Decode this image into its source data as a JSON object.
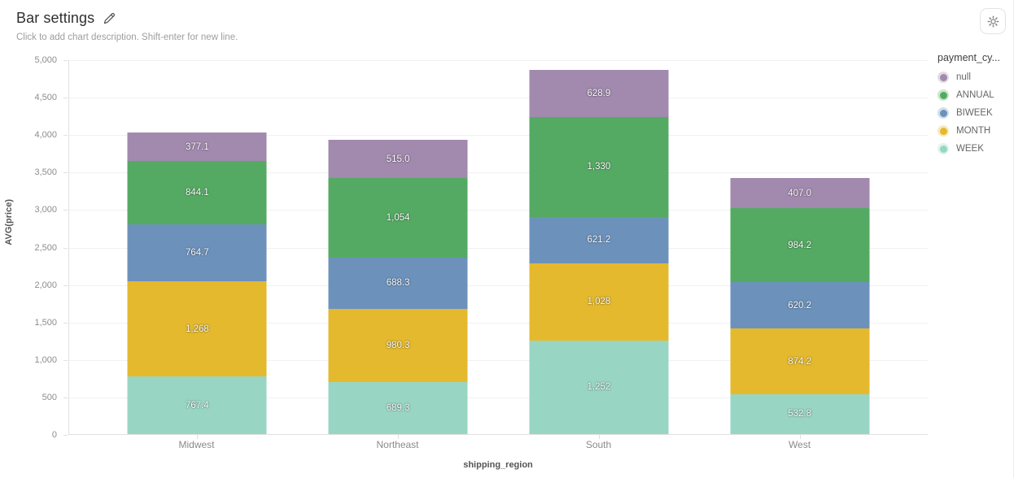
{
  "header": {
    "title": "Bar settings",
    "description_placeholder": "Click to add chart description. Shift-enter for new line."
  },
  "toolbar": {
    "settings_icon": "gear-icon",
    "edit_icon": "pencil-icon"
  },
  "chart_data": {
    "type": "bar",
    "stacked": true,
    "categories": [
      "Midwest",
      "Northeast",
      "South",
      "West"
    ],
    "series": [
      {
        "name": "WEEK",
        "color": "#98d6c3",
        "values": [
          767.4,
          689.3,
          1252,
          532.8
        ],
        "labels": [
          "767.4",
          "689.3",
          "1,252",
          "532.8"
        ]
      },
      {
        "name": "MONTH",
        "color": "#e4b92d",
        "values": [
          1268,
          980.3,
          1028,
          874.2
        ],
        "labels": [
          "1,268",
          "980.3",
          "1,028",
          "874.2"
        ]
      },
      {
        "name": "BIWEEK",
        "color": "#6c92bc",
        "values": [
          764.7,
          688.3,
          621.2,
          620.2
        ],
        "labels": [
          "764.7",
          "688.3",
          "621.2",
          "620.2"
        ]
      },
      {
        "name": "ANNUAL",
        "color": "#54aa63",
        "values": [
          844.1,
          1054,
          1330,
          984.2
        ],
        "labels": [
          "844.1",
          "1,054",
          "1,330",
          "984.2"
        ]
      },
      {
        "name": "null",
        "color": "#a289ae",
        "values": [
          377.1,
          515,
          628.9,
          407
        ],
        "labels": [
          "377.1",
          "515.0",
          "628.9",
          "407.0"
        ]
      }
    ],
    "legend": {
      "title": "payment_cy...",
      "position": "right",
      "items": [
        {
          "label": "null",
          "color": "#a289ae"
        },
        {
          "label": "ANNUAL",
          "color": "#54aa63"
        },
        {
          "label": "BIWEEK",
          "color": "#6c92bc"
        },
        {
          "label": "MONTH",
          "color": "#e4b92d"
        },
        {
          "label": "WEEK",
          "color": "#98d6c3"
        }
      ]
    },
    "xlabel": "shipping_region",
    "ylabel": "AVG(price)",
    "ylim": [
      0,
      5000
    ],
    "ytick_step": 500,
    "ytick_labels": [
      "0",
      "500",
      "1,000",
      "1,500",
      "2,000",
      "2,500",
      "3,000",
      "3,500",
      "4,000",
      "4,500",
      "5,000"
    ],
    "grid": true
  }
}
